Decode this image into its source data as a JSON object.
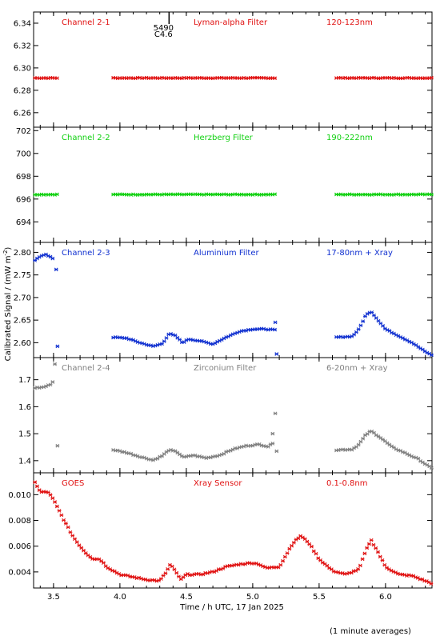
{
  "chart_data": {
    "type": "scatter",
    "ylabel": "Calibrated Signal / (mW m",
    "ylabel_sup": "-2",
    "ylabel_end": ")",
    "xlabel": "Time / h UTC, 17 Jan 2025",
    "footnote": "(1 minute averages)",
    "annotation": {
      "x": 4.37,
      "line1": "5490",
      "line2": "C4.6"
    },
    "xlim": [
      3.35,
      6.35
    ],
    "xticks": [
      "3.5",
      "4.0",
      "4.5",
      "5.0",
      "5.5",
      "6.0"
    ],
    "panels": [
      {
        "channel": "Channel 2-1",
        "filter": "Lyman-alpha Filter",
        "band": "120-123nm",
        "color": "#e01010",
        "ylim": [
          6.247,
          6.35
        ],
        "yticks": [
          "6.26",
          "6.28",
          "6.30",
          "6.32",
          "6.34"
        ],
        "segments": [
          {
            "x0": 3.36,
            "x1": 3.53,
            "y": [
              [
                3.36,
                6.291
              ],
              [
                3.53,
                6.291
              ]
            ],
            "noise": 0.0003
          },
          {
            "x0": 3.95,
            "x1": 5.18,
            "y": [
              [
                3.95,
                6.291
              ],
              [
                5.18,
                6.291
              ]
            ],
            "noise": 0.0003
          },
          {
            "x0": 5.63,
            "x1": 6.35,
            "y": [
              [
                5.63,
                6.291
              ],
              [
                6.35,
                6.291
              ]
            ],
            "noise": 0.0003
          }
        ],
        "extra_points": []
      },
      {
        "channel": "Channel 2-2",
        "filter": "Herzberg Filter",
        "band": "190-222nm",
        "color": "#10d010",
        "ylim": [
          692.2,
          702.3
        ],
        "yticks": [
          "694",
          "696",
          "698",
          "700",
          "702"
        ],
        "segments": [
          {
            "x0": 3.36,
            "x1": 3.53,
            "y": [
              [
                3.36,
                696.4
              ],
              [
                3.53,
                696.4
              ]
            ],
            "noise": 0.03
          },
          {
            "x0": 3.95,
            "x1": 5.18,
            "y": [
              [
                3.95,
                696.4
              ],
              [
                5.18,
                696.4
              ]
            ],
            "noise": 0.03
          },
          {
            "x0": 5.63,
            "x1": 6.35,
            "y": [
              [
                5.63,
                696.4
              ],
              [
                6.35,
                696.4
              ]
            ],
            "noise": 0.03
          }
        ],
        "extra_points": []
      },
      {
        "channel": "Channel 2-3",
        "filter": "Aluminium Filter",
        "band": "17-80nm + Xray",
        "color": "#1030d0",
        "ylim": [
          2.567,
          2.822
        ],
        "yticks": [
          "2.60",
          "2.65",
          "2.70",
          "2.75",
          "2.80"
        ],
        "segments": [
          {
            "x0": 3.36,
            "x1": 3.5,
            "y": [
              [
                3.36,
                2.783
              ],
              [
                3.39,
                2.79
              ],
              [
                3.44,
                2.795
              ],
              [
                3.48,
                2.79
              ],
              [
                3.5,
                2.785
              ]
            ],
            "noise": 0.001
          },
          {
            "x0": 3.95,
            "x1": 5.17,
            "y": [
              [
                3.95,
                2.612
              ],
              [
                4.05,
                2.61
              ],
              [
                4.15,
                2.6
              ],
              [
                4.25,
                2.592
              ],
              [
                4.32,
                2.598
              ],
              [
                4.37,
                2.62
              ],
              [
                4.42,
                2.615
              ],
              [
                4.47,
                2.6
              ],
              [
                4.52,
                2.608
              ],
              [
                4.6,
                2.604
              ],
              [
                4.7,
                2.597
              ],
              [
                4.8,
                2.612
              ],
              [
                4.9,
                2.625
              ],
              [
                5.0,
                2.63
              ],
              [
                5.1,
                2.63
              ],
              [
                5.17,
                2.628
              ]
            ],
            "noise": 0.001
          },
          {
            "x0": 5.63,
            "x1": 6.35,
            "y": [
              [
                5.63,
                2.612
              ],
              [
                5.75,
                2.614
              ],
              [
                5.8,
                2.63
              ],
              [
                5.85,
                2.66
              ],
              [
                5.89,
                2.67
              ],
              [
                5.93,
                2.655
              ],
              [
                6.0,
                2.63
              ],
              [
                6.1,
                2.615
              ],
              [
                6.2,
                2.6
              ],
              [
                6.3,
                2.58
              ],
              [
                6.35,
                2.572
              ]
            ],
            "noise": 0.001
          }
        ],
        "extra_points": [
          [
            3.52,
            2.762
          ],
          [
            3.53,
            2.592
          ],
          [
            5.17,
            2.645
          ],
          [
            5.18,
            2.575
          ]
        ]
      },
      {
        "channel": "Channel 2-4",
        "filter": "Zirconium Filter",
        "band": "6-20nm + Xray",
        "color": "#808080",
        "ylim": [
          1.355,
          1.782
        ],
        "yticks": [
          "1.4",
          "1.5",
          "1.6",
          "1.7"
        ],
        "segments": [
          {
            "x0": 3.36,
            "x1": 3.5,
            "y": [
              [
                3.36,
                1.67
              ],
              [
                3.42,
                1.672
              ],
              [
                3.47,
                1.68
              ],
              [
                3.5,
                1.695
              ]
            ],
            "noise": 0.002
          },
          {
            "x0": 3.95,
            "x1": 5.16,
            "y": [
              [
                3.95,
                1.44
              ],
              [
                4.05,
                1.43
              ],
              [
                4.15,
                1.415
              ],
              [
                4.25,
                1.402
              ],
              [
                4.32,
                1.418
              ],
              [
                4.37,
                1.44
              ],
              [
                4.43,
                1.432
              ],
              [
                4.48,
                1.412
              ],
              [
                4.55,
                1.42
              ],
              [
                4.65,
                1.41
              ],
              [
                4.75,
                1.42
              ],
              [
                4.85,
                1.442
              ],
              [
                4.95,
                1.455
              ],
              [
                5.05,
                1.46
              ],
              [
                5.12,
                1.452
              ],
              [
                5.16,
                1.47
              ]
            ],
            "noise": 0.002
          },
          {
            "x0": 5.63,
            "x1": 6.35,
            "y": [
              [
                5.63,
                1.44
              ],
              [
                5.75,
                1.442
              ],
              [
                5.8,
                1.46
              ],
              [
                5.85,
                1.495
              ],
              [
                5.89,
                1.51
              ],
              [
                5.95,
                1.49
              ],
              [
                6.05,
                1.45
              ],
              [
                6.15,
                1.428
              ],
              [
                6.25,
                1.405
              ],
              [
                6.35,
                1.37
              ]
            ],
            "noise": 0.002
          }
        ],
        "extra_points": [
          [
            3.51,
            1.758
          ],
          [
            3.53,
            1.455
          ],
          [
            5.15,
            1.5
          ],
          [
            5.17,
            1.575
          ],
          [
            5.18,
            1.435
          ]
        ]
      },
      {
        "channel": "GOES",
        "filter": "Xray Sensor",
        "band": "0.1-0.8nm",
        "color": "#e01010",
        "ylim": [
          0.00275,
          0.0117
        ],
        "yticks": [
          "0.004",
          "0.006",
          "0.008",
          "0.010"
        ],
        "segments": [
          {
            "x0": 3.36,
            "x1": 6.35,
            "y": [
              [
                3.36,
                0.011
              ],
              [
                3.38,
                0.0106
              ],
              [
                3.4,
                0.0102
              ],
              [
                3.46,
                0.0102
              ],
              [
                3.5,
                0.0096
              ],
              [
                3.55,
                0.0086
              ],
              [
                3.6,
                0.0076
              ],
              [
                3.65,
                0.0067
              ],
              [
                3.7,
                0.006
              ],
              [
                3.75,
                0.0054
              ],
              [
                3.8,
                0.005
              ],
              [
                3.85,
                0.005
              ],
              [
                3.9,
                0.0044
              ],
              [
                4.0,
                0.0038
              ],
              [
                4.1,
                0.0036
              ],
              [
                4.2,
                0.0034
              ],
              [
                4.3,
                0.0033
              ],
              [
                4.35,
                0.004
              ],
              [
                4.38,
                0.0046
              ],
              [
                4.42,
                0.004
              ],
              [
                4.46,
                0.0034
              ],
              [
                4.5,
                0.0038
              ],
              [
                4.6,
                0.0038
              ],
              [
                4.7,
                0.004
              ],
              [
                4.8,
                0.0044
              ],
              [
                4.9,
                0.0046
              ],
              [
                5.0,
                0.0047
              ],
              [
                5.05,
                0.0046
              ],
              [
                5.1,
                0.0043
              ],
              [
                5.2,
                0.0044
              ],
              [
                5.3,
                0.0062
              ],
              [
                5.36,
                0.0068
              ],
              [
                5.42,
                0.0063
              ],
              [
                5.5,
                0.005
              ],
              [
                5.6,
                0.0041
              ],
              [
                5.7,
                0.0038
              ],
              [
                5.8,
                0.0042
              ],
              [
                5.85,
                0.0056
              ],
              [
                5.89,
                0.0065
              ],
              [
                5.93,
                0.0058
              ],
              [
                6.0,
                0.0044
              ],
              [
                6.1,
                0.0038
              ],
              [
                6.2,
                0.0037
              ],
              [
                6.3,
                0.0033
              ],
              [
                6.35,
                0.0031
              ]
            ],
            "noise": 5e-05
          }
        ],
        "extra_points": []
      }
    ]
  }
}
